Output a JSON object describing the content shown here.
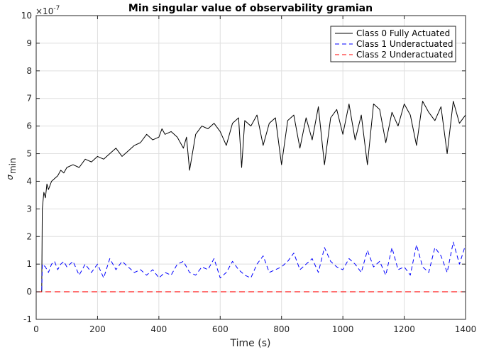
{
  "chart_data": {
    "type": "line",
    "title": "Min singular value of observability gramian",
    "xlabel": "Time (s)",
    "ylabel": "σ min",
    "ylabel_main": "σ",
    "ylabel_sub": "min",
    "y_scale_base": "×10",
    "y_scale_exp": "-7",
    "xlim": [
      0,
      1400
    ],
    "ylim": [
      -1,
      10
    ],
    "xticks": [
      0,
      200,
      400,
      600,
      800,
      1000,
      1200,
      1400
    ],
    "yticks": [
      -1,
      0,
      1,
      2,
      3,
      4,
      5,
      6,
      7,
      8,
      9,
      10
    ],
    "grid": true,
    "legend_position": "top-right",
    "series": [
      {
        "name": "Class 0 Fully Actuated",
        "color": "#000000",
        "style": "solid",
        "x": [
          0,
          18,
          20,
          25,
          30,
          35,
          40,
          50,
          60,
          70,
          80,
          90,
          100,
          120,
          140,
          160,
          180,
          200,
          220,
          240,
          260,
          280,
          300,
          320,
          340,
          360,
          380,
          400,
          410,
          420,
          440,
          460,
          480,
          490,
          500,
          520,
          540,
          560,
          580,
          600,
          620,
          640,
          660,
          670,
          680,
          700,
          720,
          740,
          760,
          780,
          800,
          820,
          840,
          860,
          880,
          900,
          920,
          940,
          960,
          980,
          1000,
          1020,
          1040,
          1060,
          1080,
          1100,
          1120,
          1140,
          1160,
          1180,
          1200,
          1220,
          1240,
          1260,
          1280,
          1300,
          1320,
          1340,
          1360,
          1380,
          1400
        ],
        "values": [
          0,
          0,
          3.0,
          3.6,
          3.4,
          3.9,
          3.7,
          4.0,
          4.1,
          4.2,
          4.4,
          4.3,
          4.5,
          4.6,
          4.5,
          4.8,
          4.7,
          4.9,
          4.8,
          5.0,
          5.2,
          4.9,
          5.1,
          5.3,
          5.4,
          5.7,
          5.5,
          5.6,
          5.9,
          5.7,
          5.8,
          5.6,
          5.2,
          5.6,
          4.4,
          5.7,
          6.0,
          5.9,
          6.1,
          5.8,
          5.3,
          6.1,
          6.3,
          4.5,
          6.2,
          6.0,
          6.4,
          5.3,
          6.1,
          6.3,
          4.6,
          6.2,
          6.4,
          5.2,
          6.3,
          5.5,
          6.7,
          4.6,
          6.3,
          6.6,
          5.7,
          6.8,
          5.5,
          6.4,
          4.6,
          6.8,
          6.6,
          5.4,
          6.5,
          6.0,
          6.8,
          6.4,
          5.3,
          6.9,
          6.5,
          6.2,
          6.7,
          5.0,
          6.9,
          6.1,
          6.4
        ]
      },
      {
        "name": "Class 1 Underactuated",
        "color": "#0000ff",
        "style": "dashed",
        "x": [
          0,
          18,
          20,
          30,
          40,
          50,
          60,
          70,
          80,
          90,
          100,
          110,
          120,
          140,
          160,
          180,
          200,
          220,
          240,
          260,
          280,
          300,
          320,
          340,
          360,
          380,
          400,
          420,
          440,
          460,
          480,
          500,
          520,
          540,
          560,
          580,
          600,
          620,
          640,
          660,
          680,
          700,
          720,
          740,
          760,
          780,
          800,
          820,
          840,
          860,
          880,
          900,
          920,
          940,
          960,
          980,
          1000,
          1020,
          1040,
          1060,
          1080,
          1100,
          1120,
          1140,
          1160,
          1180,
          1200,
          1220,
          1240,
          1260,
          1280,
          1300,
          1320,
          1340,
          1360,
          1380,
          1400
        ],
        "values": [
          0,
          0,
          1.0,
          0.9,
          0.7,
          1.0,
          1.1,
          0.8,
          1.0,
          1.1,
          0.9,
          1.0,
          1.1,
          0.6,
          1.0,
          0.7,
          1.0,
          0.5,
          1.2,
          0.8,
          1.1,
          0.9,
          0.7,
          0.8,
          0.6,
          0.8,
          0.5,
          0.7,
          0.6,
          1.0,
          1.1,
          0.7,
          0.6,
          0.9,
          0.8,
          1.2,
          0.5,
          0.7,
          1.1,
          0.8,
          0.6,
          0.5,
          1.0,
          1.3,
          0.7,
          0.8,
          0.9,
          1.1,
          1.4,
          0.8,
          1.0,
          1.2,
          0.7,
          1.6,
          1.1,
          0.9,
          0.8,
          1.2,
          1.0,
          0.7,
          1.5,
          0.9,
          1.1,
          0.6,
          1.6,
          0.8,
          0.9,
          0.6,
          1.7,
          0.9,
          0.7,
          1.6,
          1.3,
          0.7,
          1.8,
          1.0,
          1.7
        ]
      },
      {
        "name": "Class 2 Underactuated",
        "color": "#ff0000",
        "style": "dashed",
        "x": [
          0,
          1400
        ],
        "values": [
          0,
          0
        ]
      }
    ]
  }
}
